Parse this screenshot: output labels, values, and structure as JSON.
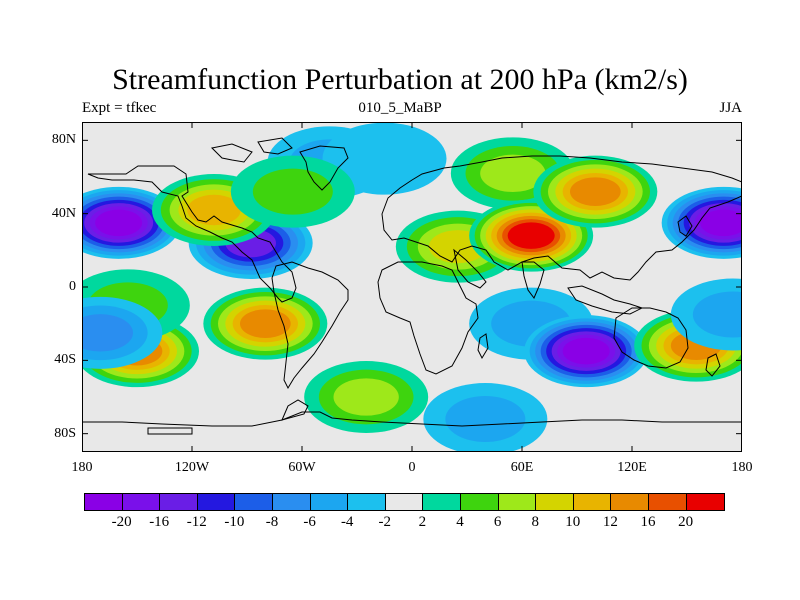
{
  "title": "Streamfunction Perturbation at 200 hPa (km2/s)",
  "subtitle_left": "Expt = tfkec",
  "subtitle_center": "010_5_MaBP",
  "subtitle_right": "JJA",
  "lat_labels": [
    "80N",
    "40N",
    "0",
    "40S",
    "80S"
  ],
  "lon_labels": [
    "180",
    "120W",
    "60W",
    "0",
    "60E",
    "120E",
    "180"
  ],
  "colorbar": {
    "colors": [
      "#8a00e6",
      "#7a10ea",
      "#6a1ee6",
      "#2418e0",
      "#1c5ee8",
      "#2a8ef0",
      "#1ca6f0",
      "#1cc0ee",
      "#e8e8e8",
      "#00d89e",
      "#3ed40e",
      "#9ee81a",
      "#d4d400",
      "#e8b400",
      "#e88a00",
      "#e85000",
      "#e80000"
    ],
    "labels": [
      "-20",
      "-16",
      "-12",
      "-10",
      "-8",
      "-6",
      "-4",
      "-2",
      "2",
      "4",
      "6",
      "8",
      "10",
      "12",
      "16",
      "20"
    ]
  },
  "chart_data": {
    "type": "heatmap",
    "field": "Streamfunction Perturbation at 200 hPa",
    "units": "km2/s",
    "experiment": "tfkec",
    "case": "010_5_MaBP",
    "season": "JJA",
    "contour_levels": [
      -20,
      -16,
      -12,
      -10,
      -8,
      -6,
      -4,
      -2,
      2,
      4,
      6,
      8,
      10,
      12,
      16,
      20
    ],
    "x_range": [
      -180,
      180
    ],
    "y_range": [
      -90,
      90
    ],
    "x_ticks": [
      -180,
      -120,
      -60,
      0,
      60,
      120,
      180
    ],
    "y_ticks": [
      80,
      40,
      0,
      -40,
      -80
    ],
    "features": [
      {
        "lon": -160,
        "lat": 35,
        "value": -20
      },
      {
        "lon": 170,
        "lat": 35,
        "value": -20
      },
      {
        "lon": -88,
        "lat": 24,
        "value": -12
      },
      {
        "lon": -108,
        "lat": 42,
        "value": 10
      },
      {
        "lon": -45,
        "lat": 68,
        "value": -4
      },
      {
        "lon": -15,
        "lat": 70,
        "value": -2
      },
      {
        "lon": -65,
        "lat": 52,
        "value": 4
      },
      {
        "lon": 25,
        "lat": 22,
        "value": 8
      },
      {
        "lon": 55,
        "lat": 62,
        "value": 6
      },
      {
        "lon": 65,
        "lat": 28,
        "value": 20
      },
      {
        "lon": 100,
        "lat": 52,
        "value": 12
      },
      {
        "lon": -80,
        "lat": -20,
        "value": 12
      },
      {
        "lon": -150,
        "lat": -35,
        "value": 12
      },
      {
        "lon": -155,
        "lat": -10,
        "value": 4
      },
      {
        "lon": -25,
        "lat": -60,
        "value": 6
      },
      {
        "lon": 65,
        "lat": -20,
        "value": -4
      },
      {
        "lon": 95,
        "lat": -35,
        "value": -20
      },
      {
        "lon": 155,
        "lat": -32,
        "value": 12
      },
      {
        "lon": 175,
        "lat": -15,
        "value": -4
      },
      {
        "lon": -170,
        "lat": -25,
        "value": -6
      },
      {
        "lon": 40,
        "lat": -72,
        "value": -4
      }
    ]
  }
}
